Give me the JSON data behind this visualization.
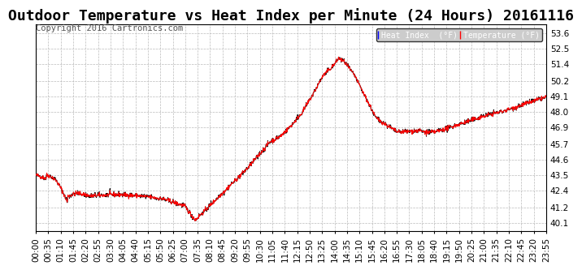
{
  "title": "Outdoor Temperature vs Heat Index per Minute (24 Hours) 20161116",
  "copyright": "Copyright 2016 Cartronics.com",
  "legend_heat": "Heat Index  (°F)",
  "legend_temp": "Temperature (°F)",
  "y_min": 39.5,
  "y_max": 54.2,
  "yticks": [
    40.1,
    41.2,
    42.4,
    43.5,
    44.6,
    45.7,
    46.9,
    48.0,
    49.1,
    50.2,
    51.4,
    52.5,
    53.6
  ],
  "background_color": "#ffffff",
  "plot_bg_color": "#ffffff",
  "grid_color": "#bbbbbb",
  "temp_color": "#ff0000",
  "heat_color": "#000000",
  "legend_heat_bg": "#0000ff",
  "legend_temp_bg": "#ff0000",
  "legend_text_color": "#ffffff",
  "title_fontsize": 13,
  "copyright_fontsize": 7.5,
  "tick_fontsize": 7.5,
  "xtick_labels": [
    "00:00",
    "00:35",
    "01:10",
    "01:45",
    "02:20",
    "02:55",
    "03:30",
    "04:05",
    "04:40",
    "05:15",
    "05:50",
    "06:25",
    "07:00",
    "07:35",
    "08:10",
    "08:45",
    "09:20",
    "09:55",
    "10:30",
    "11:05",
    "11:40",
    "12:15",
    "12:50",
    "13:25",
    "14:00",
    "14:35",
    "15:10",
    "15:45",
    "16:20",
    "16:55",
    "17:30",
    "18:05",
    "18:40",
    "19:15",
    "19:50",
    "20:25",
    "21:00",
    "21:35",
    "22:10",
    "22:45",
    "23:20",
    "23:55"
  ]
}
